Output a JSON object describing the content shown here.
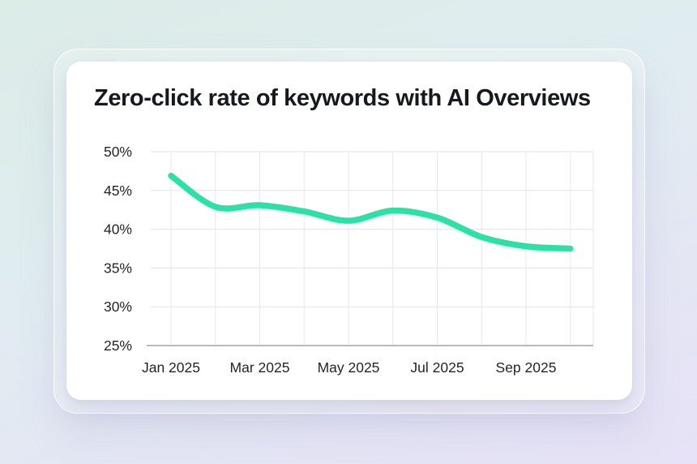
{
  "page": {
    "background_colors": {
      "top_left": "#dcece7",
      "top_right": "#e0edf0",
      "bottom_right": "#e7e2f7"
    },
    "card_background": "#ffffff"
  },
  "chart_data": {
    "type": "line",
    "title": "Zero-click rate of keywords with AI Overviews",
    "x": [
      "Jan 2025",
      "Feb 2025",
      "Mar 2025",
      "Apr 2025",
      "May 2025",
      "Jun 2025",
      "Jul 2025",
      "Aug 2025",
      "Sep 2025",
      "Oct 2025"
    ],
    "values": [
      46.9,
      42.9,
      43.1,
      42.3,
      41.1,
      42.4,
      41.5,
      39.0,
      37.8,
      37.5
    ],
    "unit": "%",
    "ylim": [
      25,
      50
    ],
    "y_tick_labels": [
      "50%",
      "45%",
      "40%",
      "35%",
      "30%",
      "25%"
    ],
    "y_tick_values": [
      50,
      45,
      40,
      35,
      30,
      25
    ],
    "x_tick_labels": [
      "Jan 2025",
      "Mar 2025",
      "May 2025",
      "Jul 2025",
      "Sep 2025"
    ],
    "x_tick_indices": [
      0,
      2,
      4,
      6,
      8
    ],
    "grid": true,
    "legend": false,
    "line_color": "#2be1a6",
    "grid_color_vertical": "#e8e8e9",
    "grid_color_horizontal": "#e3e3e4",
    "axis_line_color": "#b6b9bd",
    "tick_label_color": "#222529"
  }
}
